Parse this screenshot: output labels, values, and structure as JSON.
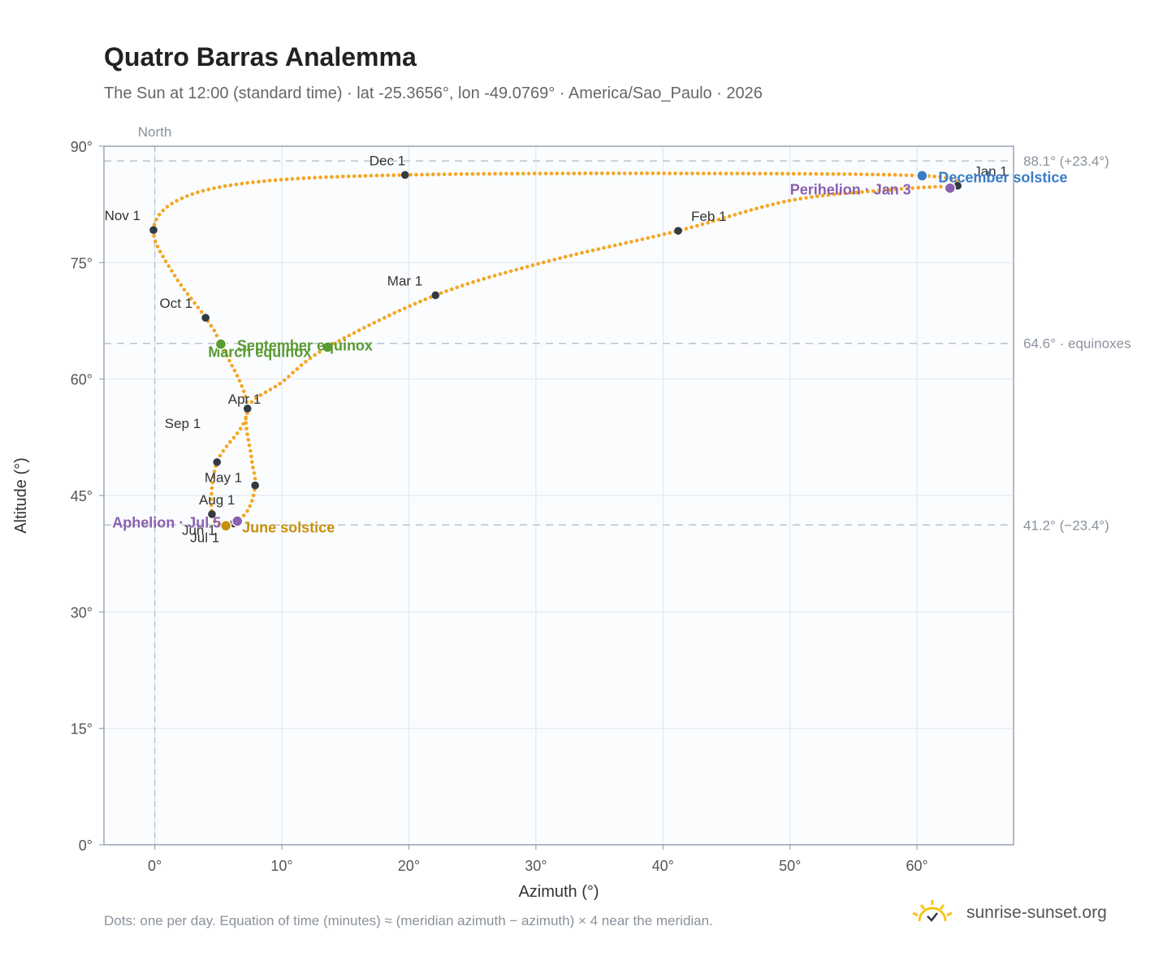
{
  "header": {
    "title": "Quatro Barras Analemma",
    "subtitle": "The Sun at 12:00 (standard time) · lat -25.3656°, lon -49.0769° · America/Sao_Paulo · 2026"
  },
  "footer": {
    "note": "Dots: one per day. Equation of time (minutes) ≈ (meridian azimuth − azimuth) × 4 near the meridian.",
    "brand": "sunrise-sunset.org"
  },
  "colors": {
    "path": "#f5a623",
    "month_dot": "#333a44",
    "equinox": "#5a9a32",
    "december_solstice": "#3a7bc8",
    "june_solstice": "#c8900a",
    "apsis": "#8a60b0",
    "reference_line": "#b8c4d0",
    "plot_bg": "#fafcfe",
    "grid": "#e2e8ee",
    "frame": "#9aa6b4"
  },
  "chart_data": {
    "type": "scatter",
    "title": "Quatro Barras Analemma",
    "xlabel": "Azimuth (°)",
    "ylabel": "Altitude (°)",
    "xlim": [
      -4,
      67.6
    ],
    "ylim": [
      0,
      90
    ],
    "x_ticks": [
      0,
      10,
      20,
      30,
      40,
      50,
      60
    ],
    "x_tick_labels": [
      "0°",
      "10°",
      "20°",
      "30°",
      "40°",
      "50°",
      "60°"
    ],
    "y_ticks": [
      0,
      15,
      30,
      45,
      60,
      75,
      90
    ],
    "y_tick_labels": [
      "0°",
      "15°",
      "30°",
      "45°",
      "60°",
      "75°",
      "90°"
    ],
    "grid": true,
    "north_label": "North",
    "reference_lines": [
      {
        "altitude": 88.1,
        "label": "88.1° (+23.4°)"
      },
      {
        "altitude": 64.6,
        "label": "64.6° · equinoxes"
      },
      {
        "altitude": 41.2,
        "label": "41.2° (−23.4°)"
      }
    ],
    "path_keypoints": [
      {
        "x": 63.2,
        "y": 84.9
      },
      {
        "x": 58.0,
        "y": 84.4
      },
      {
        "x": 50.0,
        "y": 83.0
      },
      {
        "x": 41.2,
        "y": 79.1
      },
      {
        "x": 31.0,
        "y": 75.2
      },
      {
        "x": 22.1,
        "y": 70.8
      },
      {
        "x": 13.6,
        "y": 64.1
      },
      {
        "x": 10.0,
        "y": 59.6
      },
      {
        "x": 7.3,
        "y": 56.2
      },
      {
        "x": 7.6,
        "y": 50.0
      },
      {
        "x": 7.9,
        "y": 46.3
      },
      {
        "x": 7.2,
        "y": 42.8
      },
      {
        "x": 5.6,
        "y": 41.1
      },
      {
        "x": 4.5,
        "y": 42.6
      },
      {
        "x": 4.9,
        "y": 49.3
      },
      {
        "x": 7.3,
        "y": 56.0
      },
      {
        "x": 5.2,
        "y": 64.5
      },
      {
        "x": 4.0,
        "y": 67.9
      },
      {
        "x": 1.5,
        "y": 73.5
      },
      {
        "x": -0.1,
        "y": 79.2
      },
      {
        "x": 2.0,
        "y": 83.2
      },
      {
        "x": 8.0,
        "y": 85.4
      },
      {
        "x": 19.7,
        "y": 86.3
      },
      {
        "x": 40.0,
        "y": 86.5
      },
      {
        "x": 60.4,
        "y": 86.2
      },
      {
        "x": 63.2,
        "y": 84.9
      }
    ],
    "month_markers": [
      {
        "label": "Jan 1",
        "x": 63.2,
        "y": 84.9
      },
      {
        "label": "Feb 1",
        "x": 41.2,
        "y": 79.1
      },
      {
        "label": "Mar 1",
        "x": 22.1,
        "y": 70.8
      },
      {
        "label": "Apr 1",
        "x": 7.3,
        "y": 56.2
      },
      {
        "label": "May 1",
        "x": 7.9,
        "y": 46.3
      },
      {
        "label": "Jun 1",
        "x": 6.2,
        "y": 41.4
      },
      {
        "label": "Jul 1",
        "x": 5.6,
        "y": 41.1
      },
      {
        "label": "Aug 1",
        "x": 4.5,
        "y": 42.6
      },
      {
        "label": "Sep 1",
        "x": 4.9,
        "y": 49.3
      },
      {
        "label": "Oct 1",
        "x": 4.0,
        "y": 67.9
      },
      {
        "label": "Nov 1",
        "x": -0.1,
        "y": 79.2
      },
      {
        "label": "Dec 1",
        "x": 19.7,
        "y": 86.3
      }
    ],
    "events": [
      {
        "label": "March equinox",
        "x": 13.6,
        "y": 64.1,
        "kind": "equinox"
      },
      {
        "label": "September equinox",
        "x": 5.2,
        "y": 64.5,
        "kind": "equinox"
      },
      {
        "label": "December solstice",
        "x": 60.4,
        "y": 86.2,
        "kind": "december_solstice"
      },
      {
        "label": "June solstice",
        "x": 5.6,
        "y": 41.1,
        "kind": "june_solstice"
      },
      {
        "label": "Perihelion · Jan 3",
        "x": 62.6,
        "y": 84.6,
        "kind": "apsis"
      },
      {
        "label": "Aphelion · Jul 5",
        "x": 6.5,
        "y": 41.7,
        "kind": "apsis"
      }
    ]
  }
}
